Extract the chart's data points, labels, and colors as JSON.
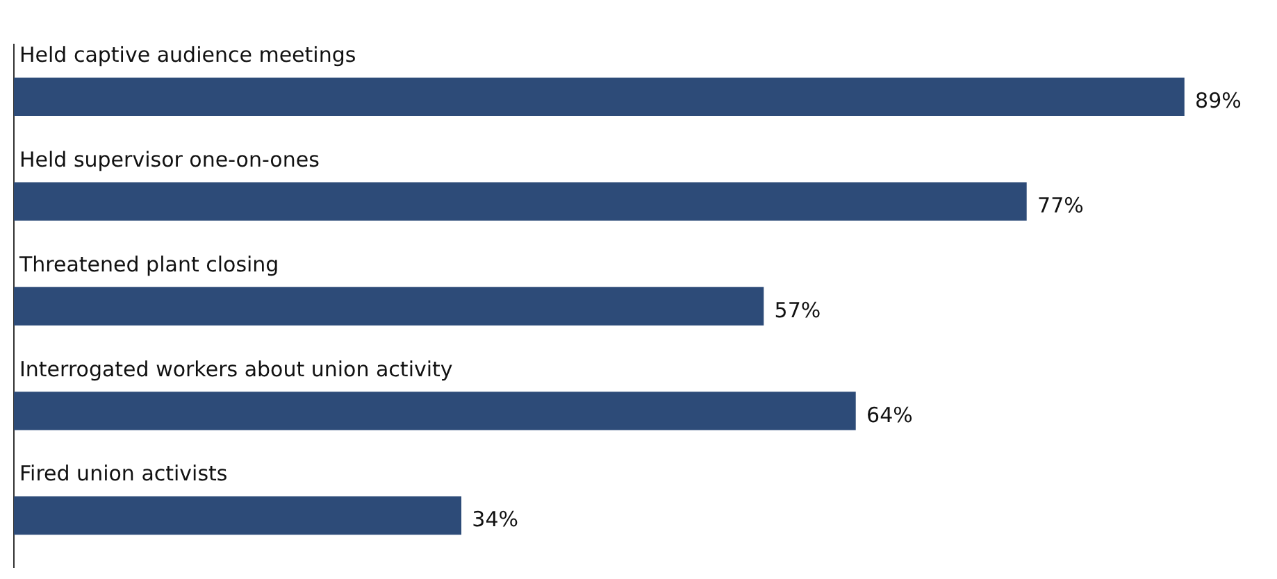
{
  "chart_data": {
    "type": "bar",
    "orientation": "horizontal",
    "categories": [
      "Held captive audience meetings",
      "Held supervisor one-on-ones",
      "Threatened plant closing",
      "Interrogated workers about union activity",
      "Fired union activists"
    ],
    "values": [
      89,
      77,
      57,
      64,
      34
    ],
    "value_labels": [
      "89%",
      "77%",
      "57%",
      "64%",
      "34%"
    ],
    "color": "#2d4b78"
  }
}
